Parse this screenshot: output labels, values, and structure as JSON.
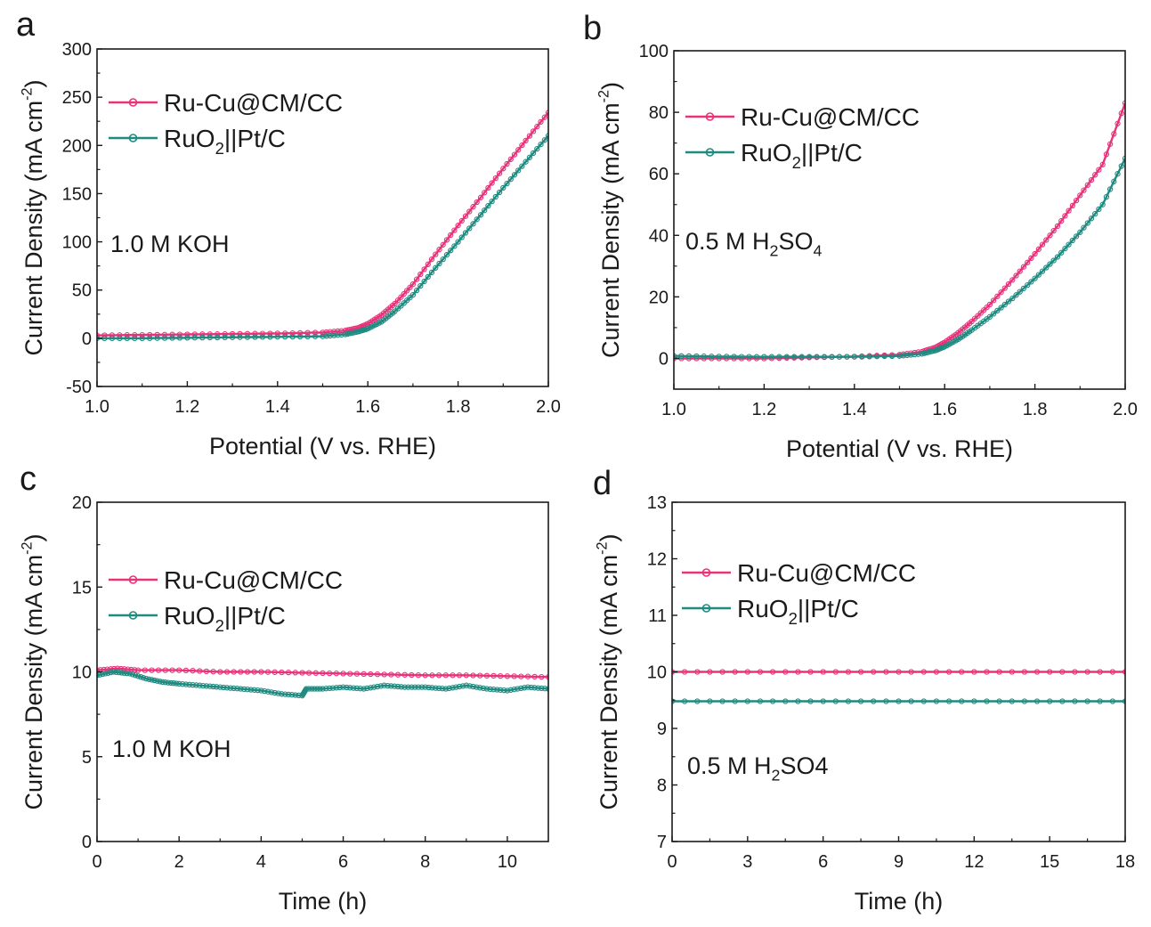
{
  "colors": {
    "ruCu": "#e8327a",
    "ruO2": "#1e8a80",
    "axis": "#1a1a1a"
  },
  "chart_data": [
    {
      "panel": "a",
      "type": "line",
      "xlabel": "Potential (V vs. RHE)",
      "ylabel_main": "Current Density (mA cm",
      "ylabel_sup": "-2",
      "ylabel_end": ")",
      "xlim": [
        1.0,
        2.0
      ],
      "ylim": [
        -50,
        300
      ],
      "xticks": [
        1.0,
        1.2,
        1.4,
        1.6,
        1.8,
        2.0
      ],
      "xtick_labels": [
        "1.0",
        "1.2",
        "1.4",
        "1.6",
        "1.8",
        "2.0"
      ],
      "yticks": [
        -50,
        0,
        50,
        100,
        150,
        200,
        250,
        300
      ],
      "ytick_labels": [
        "-50",
        "0",
        "50",
        "100",
        "150",
        "200",
        "250",
        "300"
      ],
      "condition": {
        "main": "1.0 M KOH",
        "sub": "",
        "tail": ""
      },
      "legend": [
        {
          "main": "Ru-Cu@CM/CC",
          "sub": "",
          "tail": "",
          "series": 0
        },
        {
          "main": "RuO",
          "sub": "2",
          "tail": "||Pt/C",
          "series": 1
        }
      ],
      "series": [
        {
          "name": "Ru-Cu@CM/CC",
          "color_key": "ruCu",
          "x": [
            1.0,
            1.1,
            1.2,
            1.3,
            1.4,
            1.5,
            1.55,
            1.58,
            1.6,
            1.63,
            1.66,
            1.7,
            1.75,
            1.8,
            1.85,
            1.9,
            1.95,
            2.0
          ],
          "y": [
            3,
            3.5,
            4,
            4.5,
            5,
            6,
            8,
            11,
            15,
            24,
            36,
            56,
            87,
            117,
            146,
            176,
            205,
            234
          ]
        },
        {
          "name": "RuO2||Pt/C",
          "color_key": "ruO2",
          "x": [
            1.0,
            1.1,
            1.2,
            1.3,
            1.4,
            1.5,
            1.55,
            1.58,
            1.6,
            1.63,
            1.66,
            1.7,
            1.75,
            1.8,
            1.85,
            1.9,
            1.95,
            2.0
          ],
          "y": [
            0,
            0,
            0.5,
            1,
            1.5,
            2,
            4,
            7,
            10,
            17,
            28,
            45,
            73,
            100,
            128,
            156,
            183,
            210
          ]
        }
      ]
    },
    {
      "panel": "b",
      "type": "line",
      "xlabel": "Potential (V vs. RHE)",
      "ylabel_main": "Current Density (mA cm",
      "ylabel_sup": "-2",
      "ylabel_end": ")",
      "xlim": [
        1.0,
        2.0
      ],
      "ylim": [
        -10,
        100
      ],
      "xticks": [
        1.0,
        1.2,
        1.4,
        1.6,
        1.8,
        2.0
      ],
      "xtick_labels": [
        "1.0",
        "1.2",
        "1.4",
        "1.6",
        "1.8",
        "2.0"
      ],
      "yticks": [
        0,
        20,
        40,
        60,
        80,
        100
      ],
      "ytick_labels": [
        "0",
        "20",
        "40",
        "60",
        "80",
        "100"
      ],
      "condition": {
        "main": "0.5 M H",
        "sub": "2",
        "tail": "SO",
        "sub2": "4"
      },
      "legend": [
        {
          "main": "Ru-Cu@CM/CC",
          "sub": "",
          "tail": "",
          "series": 0
        },
        {
          "main": "RuO",
          "sub": "2",
          "tail": "||Pt/C",
          "series": 1
        }
      ],
      "series": [
        {
          "name": "Ru-Cu@CM/CC",
          "color_key": "ruCu",
          "x": [
            1.0,
            1.1,
            1.2,
            1.3,
            1.4,
            1.5,
            1.55,
            1.58,
            1.6,
            1.63,
            1.66,
            1.7,
            1.75,
            1.8,
            1.85,
            1.9,
            1.95,
            2.0
          ],
          "y": [
            0,
            0,
            0,
            0.3,
            0.6,
            1.2,
            2.2,
            3.6,
            5.2,
            8.3,
            12,
            17.5,
            25.5,
            34,
            43,
            53,
            63,
            83
          ]
        },
        {
          "name": "RuO2||Pt/C",
          "color_key": "ruO2",
          "x": [
            1.0,
            1.1,
            1.2,
            1.3,
            1.4,
            1.5,
            1.55,
            1.58,
            1.6,
            1.63,
            1.66,
            1.7,
            1.75,
            1.8,
            1.85,
            1.9,
            1.95,
            2.0
          ],
          "y": [
            0.8,
            0.6,
            0.5,
            0.5,
            0.5,
            0.8,
            1.5,
            2.6,
            3.8,
            6.2,
            9.2,
            13.5,
            19.5,
            26,
            33,
            41,
            50,
            65
          ]
        }
      ]
    },
    {
      "panel": "c",
      "type": "line",
      "xlabel": "Time (h)",
      "ylabel_main": "Current Density (mA cm",
      "ylabel_sup": "-2",
      "ylabel_end": ")",
      "xlim": [
        0,
        11
      ],
      "ylim": [
        0,
        20
      ],
      "xticks": [
        0,
        2,
        4,
        6,
        8,
        10
      ],
      "xtick_labels": [
        "0",
        "2",
        "4",
        "6",
        "8",
        "10"
      ],
      "yticks": [
        0,
        5,
        10,
        15,
        20
      ],
      "ytick_labels": [
        "0",
        "5",
        "10",
        "15",
        "20"
      ],
      "condition": {
        "main": "1.0 M KOH",
        "sub": "",
        "tail": ""
      },
      "legend": [
        {
          "main": "Ru-Cu@CM/CC",
          "sub": "",
          "tail": "",
          "series": 0
        },
        {
          "main": "RuO",
          "sub": "2",
          "tail": "||Pt/C",
          "series": 1
        }
      ],
      "series": [
        {
          "name": "Ru-Cu@CM/CC",
          "color_key": "ruCu",
          "x": [
            0,
            0.5,
            1,
            2,
            3,
            4,
            5,
            6,
            7,
            8,
            9,
            10,
            11
          ],
          "y": [
            10.1,
            10.2,
            10.1,
            10.1,
            10.0,
            10.0,
            9.95,
            9.9,
            9.85,
            9.8,
            9.8,
            9.75,
            9.7
          ]
        },
        {
          "name": "RuO2||Pt/C",
          "color_key": "ruO2",
          "x": [
            0,
            0.4,
            0.8,
            1.2,
            1.6,
            2,
            2.5,
            3,
            3.5,
            4,
            4.5,
            5,
            5.1,
            5.5,
            6,
            6.5,
            7,
            7.5,
            8,
            8.5,
            9,
            9.5,
            10,
            10.5,
            11
          ],
          "y": [
            9.8,
            10.0,
            9.9,
            9.6,
            9.4,
            9.3,
            9.2,
            9.1,
            9.0,
            8.9,
            8.7,
            8.6,
            9.0,
            9.0,
            9.1,
            9.0,
            9.2,
            9.1,
            9.1,
            9.0,
            9.2,
            9.0,
            8.9,
            9.1,
            9.0
          ]
        }
      ]
    },
    {
      "panel": "d",
      "type": "line",
      "xlabel": "Time (h)",
      "ylabel_main": "Current Density (mA cm",
      "ylabel_sup": "-2",
      "ylabel_end": ")",
      "xlim": [
        0,
        18
      ],
      "ylim": [
        7,
        13
      ],
      "xticks": [
        0,
        3,
        6,
        9,
        12,
        15,
        18
      ],
      "xtick_labels": [
        "0",
        "3",
        "6",
        "9",
        "12",
        "15",
        "18"
      ],
      "yticks": [
        7,
        8,
        9,
        10,
        11,
        12,
        13
      ],
      "ytick_labels": [
        "7",
        "8",
        "9",
        "10",
        "11",
        "12",
        "13"
      ],
      "condition": {
        "main": "0.5 M H",
        "sub": "2",
        "tail": "SO4",
        "sub2": ""
      },
      "legend": [
        {
          "main": "Ru-Cu@CM/CC",
          "sub": "",
          "tail": "",
          "series": 0
        },
        {
          "main": "RuO",
          "sub": "2",
          "tail": "||Pt/C",
          "series": 1
        }
      ],
      "series": [
        {
          "name": "Ru-Cu@CM/CC",
          "color_key": "ruCu",
          "x": [
            0,
            3,
            6,
            9,
            12,
            15,
            18
          ],
          "y": [
            10.0,
            10.0,
            10.0,
            10.0,
            10.0,
            10.0,
            10.0
          ]
        },
        {
          "name": "RuO2||Pt/C",
          "color_key": "ruO2",
          "x": [
            0,
            3,
            6,
            9,
            12,
            15,
            18
          ],
          "y": [
            9.48,
            9.48,
            9.48,
            9.48,
            9.48,
            9.48,
            9.48
          ]
        }
      ]
    }
  ]
}
